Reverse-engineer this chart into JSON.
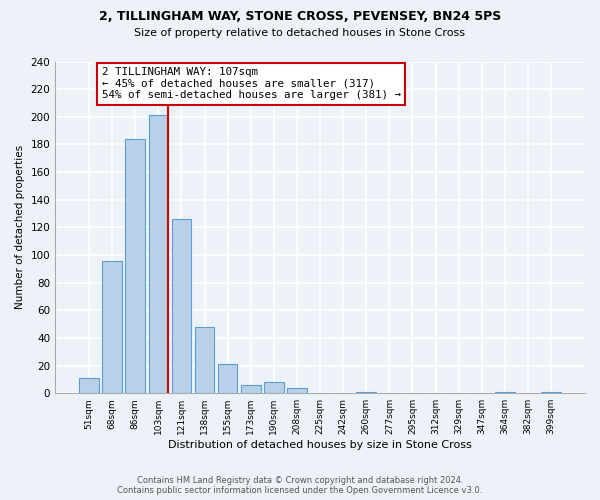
{
  "title1": "2, TILLINGHAM WAY, STONE CROSS, PEVENSEY, BN24 5PS",
  "title2": "Size of property relative to detached houses in Stone Cross",
  "xlabel": "Distribution of detached houses by size in Stone Cross",
  "ylabel": "Number of detached properties",
  "bin_labels": [
    "51sqm",
    "68sqm",
    "86sqm",
    "103sqm",
    "121sqm",
    "138sqm",
    "155sqm",
    "173sqm",
    "190sqm",
    "208sqm",
    "225sqm",
    "242sqm",
    "260sqm",
    "277sqm",
    "295sqm",
    "312sqm",
    "329sqm",
    "347sqm",
    "364sqm",
    "382sqm",
    "399sqm"
  ],
  "bar_heights": [
    11,
    96,
    184,
    201,
    126,
    48,
    21,
    6,
    8,
    4,
    0,
    0,
    1,
    0,
    0,
    0,
    0,
    0,
    1,
    0,
    1
  ],
  "bar_color": "#b8d0e8",
  "bar_edge_color": "#5a9fd4",
  "vline_color": "#cc0000",
  "annotation_title": "2 TILLINGHAM WAY: 107sqm",
  "annotation_line1": "← 45% of detached houses are smaller (317)",
  "annotation_line2": "54% of semi-detached houses are larger (381) →",
  "annotation_box_color": "#ffffff",
  "annotation_box_edge": "#cc0000",
  "ylim": [
    0,
    240
  ],
  "yticks": [
    0,
    20,
    40,
    60,
    80,
    100,
    120,
    140,
    160,
    180,
    200,
    220,
    240
  ],
  "footer1": "Contains HM Land Registry data © Crown copyright and database right 2024.",
  "footer2": "Contains public sector information licensed under the Open Government Licence v3.0.",
  "bg_color": "#edf2f9"
}
